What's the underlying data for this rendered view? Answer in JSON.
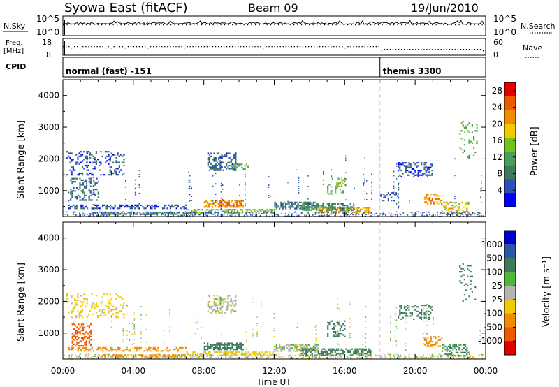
{
  "header": {
    "station": "Syowa East (fitACF)",
    "beam": "Beam 09",
    "date": "19/Jun/2010"
  },
  "aux_panel": {
    "nsky_label": "N.Sky",
    "nsearch_label": "N.Search",
    "freq_label_1": "Freq.",
    "freq_label_2": "[MHz]",
    "nave_label": "Nave",
    "cpid_label": "CPID",
    "noise_ticks_left": [
      "10^5",
      "10^0"
    ],
    "noise_ticks_right": [
      "10^5",
      "10^0"
    ],
    "freq_ticks": [
      "18",
      "8"
    ],
    "nave_ticks": [
      "60",
      "0"
    ]
  },
  "cpid_segments": [
    {
      "label": "normal (fast) -151",
      "start_hour": 0
    },
    {
      "label": "themis 3300",
      "start_hour": 18
    }
  ],
  "colors": {
    "power": [
      "#0000ff",
      "#2b4fb5",
      "#3d7a5a",
      "#4a9f5b",
      "#74c21e",
      "#f2c800",
      "#f08c00",
      "#ee5a00",
      "#e00000"
    ],
    "velocity": [
      "#0000d0",
      "#2c56a8",
      "#3d7a5a",
      "#53b53c",
      "#b4b4b4",
      "#f2c800",
      "#f08c00",
      "#ee5a00",
      "#e00000"
    ]
  },
  "chart_data": [
    {
      "type": "heatmap",
      "quantity": "power",
      "xlabel": "Time UT",
      "ylabel": "Slant Range [km]",
      "xlim": [
        0,
        24
      ],
      "ylim": [
        180,
        4500
      ],
      "x_ticks": [
        "00:00",
        "04:00",
        "08:00",
        "12:00",
        "16:00",
        "20:00",
        "00:00"
      ],
      "y_ticks": [
        "1000",
        "2000",
        "3000",
        "4000"
      ],
      "colorbar_label": "Power [dB]",
      "colorbar_ticks": [
        "4",
        "8",
        "12",
        "16",
        "20",
        "24",
        "28"
      ],
      "colorbar_range": [
        0,
        30
      ],
      "regions": [
        {
          "t": [
            0.3,
            7.0
          ],
          "r": [
            420,
            560
          ],
          "value": 5,
          "density": 0.45
        },
        {
          "t": [
            0.2,
            3.5
          ],
          "r": [
            1500,
            2250
          ],
          "value": 5,
          "density": 0.25
        },
        {
          "t": [
            0.4,
            2.0
          ],
          "r": [
            700,
            1400
          ],
          "value": 8,
          "density": 0.35
        },
        {
          "t": [
            2.0,
            7.0
          ],
          "r": [
            250,
            330
          ],
          "value": 10,
          "density": 0.6
        },
        {
          "t": [
            8.0,
            10.2
          ],
          "r": [
            500,
            700
          ],
          "value": 22,
          "density": 0.7
        },
        {
          "t": [
            8.2,
            9.8
          ],
          "r": [
            1650,
            2200
          ],
          "value": 6,
          "density": 0.5
        },
        {
          "t": [
            9.6,
            10.5
          ],
          "r": [
            1700,
            1850
          ],
          "value": 12,
          "density": 0.5
        },
        {
          "t": [
            7.0,
            12.0
          ],
          "r": [
            300,
            420
          ],
          "value": 14,
          "density": 0.55
        },
        {
          "t": [
            12.0,
            14.5
          ],
          "r": [
            450,
            650
          ],
          "value": 8,
          "density": 0.65
        },
        {
          "t": [
            14.5,
            17.5
          ],
          "r": [
            300,
            480
          ],
          "value": 20,
          "density": 0.65
        },
        {
          "t": [
            13.5,
            16.5
          ],
          "r": [
            400,
            600
          ],
          "value": 10,
          "density": 0.5
        },
        {
          "t": [
            15.0,
            16.0
          ],
          "r": [
            900,
            1400
          ],
          "value": 14,
          "density": 0.3
        },
        {
          "t": [
            19.0,
            21.0
          ],
          "r": [
            1450,
            1900
          ],
          "value": 5,
          "density": 0.35
        },
        {
          "t": [
            20.5,
            21.5
          ],
          "r": [
            600,
            900
          ],
          "value": 22,
          "density": 0.45
        },
        {
          "t": [
            21.5,
            23.0
          ],
          "r": [
            300,
            650
          ],
          "value": 18,
          "density": 0.45
        },
        {
          "t": [
            18.0,
            19.0
          ],
          "r": [
            700,
            950
          ],
          "value": 6,
          "density": 0.3
        },
        {
          "t": [
            22.5,
            23.5
          ],
          "r": [
            2000,
            3200
          ],
          "value": 12,
          "density": 0.12
        }
      ]
    },
    {
      "type": "heatmap",
      "quantity": "velocity",
      "xlabel": "Time UT",
      "ylabel": "Slant Range [km]",
      "xlim": [
        0,
        24
      ],
      "ylim": [
        180,
        4500
      ],
      "x_ticks": [
        "00:00",
        "04:00",
        "08:00",
        "12:00",
        "16:00",
        "20:00",
        "00:00"
      ],
      "y_ticks": [
        "1000",
        "2000",
        "3000",
        "4000"
      ],
      "colorbar_label": "Velocity [m s⁻¹]",
      "colorbar_ticks": [
        "1000",
        "500",
        "100",
        "25",
        "-25",
        "-100",
        "-500",
        "-1000"
      ],
      "regions": [
        {
          "t": [
            0.3,
            7.0
          ],
          "r": [
            420,
            560
          ],
          "value": -200,
          "density": 0.45
        },
        {
          "t": [
            0.5,
            1.6
          ],
          "r": [
            600,
            1300
          ],
          "value": -800,
          "density": 0.45
        },
        {
          "t": [
            0.2,
            3.5
          ],
          "r": [
            1500,
            2250
          ],
          "value": -50,
          "density": 0.2
        },
        {
          "t": [
            2.0,
            7.0
          ],
          "r": [
            250,
            330
          ],
          "value": -150,
          "density": 0.55
        },
        {
          "t": [
            8.0,
            10.2
          ],
          "r": [
            500,
            700
          ],
          "value": 150,
          "density": 0.7
        },
        {
          "t": [
            8.2,
            9.8
          ],
          "r": [
            1650,
            2200
          ],
          "value": 0,
          "density": 0.45
        },
        {
          "t": [
            7.0,
            12.0
          ],
          "r": [
            300,
            420
          ],
          "value": -60,
          "density": 0.5
        },
        {
          "t": [
            12.0,
            14.5
          ],
          "r": [
            450,
            650
          ],
          "value": 10,
          "density": 0.6
        },
        {
          "t": [
            13.5,
            17.5
          ],
          "r": [
            300,
            520
          ],
          "value": 150,
          "density": 0.6
        },
        {
          "t": [
            15.0,
            16.0
          ],
          "r": [
            900,
            1400
          ],
          "value": 400,
          "density": 0.3
        },
        {
          "t": [
            19.0,
            21.0
          ],
          "r": [
            1450,
            1900
          ],
          "value": 300,
          "density": 0.3
        },
        {
          "t": [
            20.5,
            21.5
          ],
          "r": [
            600,
            900
          ],
          "value": -300,
          "density": 0.45
        },
        {
          "t": [
            21.5,
            23.0
          ],
          "r": [
            300,
            650
          ],
          "value": 120,
          "density": 0.45
        },
        {
          "t": [
            22.5,
            23.5
          ],
          "r": [
            2000,
            3200
          ],
          "value": 200,
          "density": 0.12
        }
      ]
    }
  ]
}
